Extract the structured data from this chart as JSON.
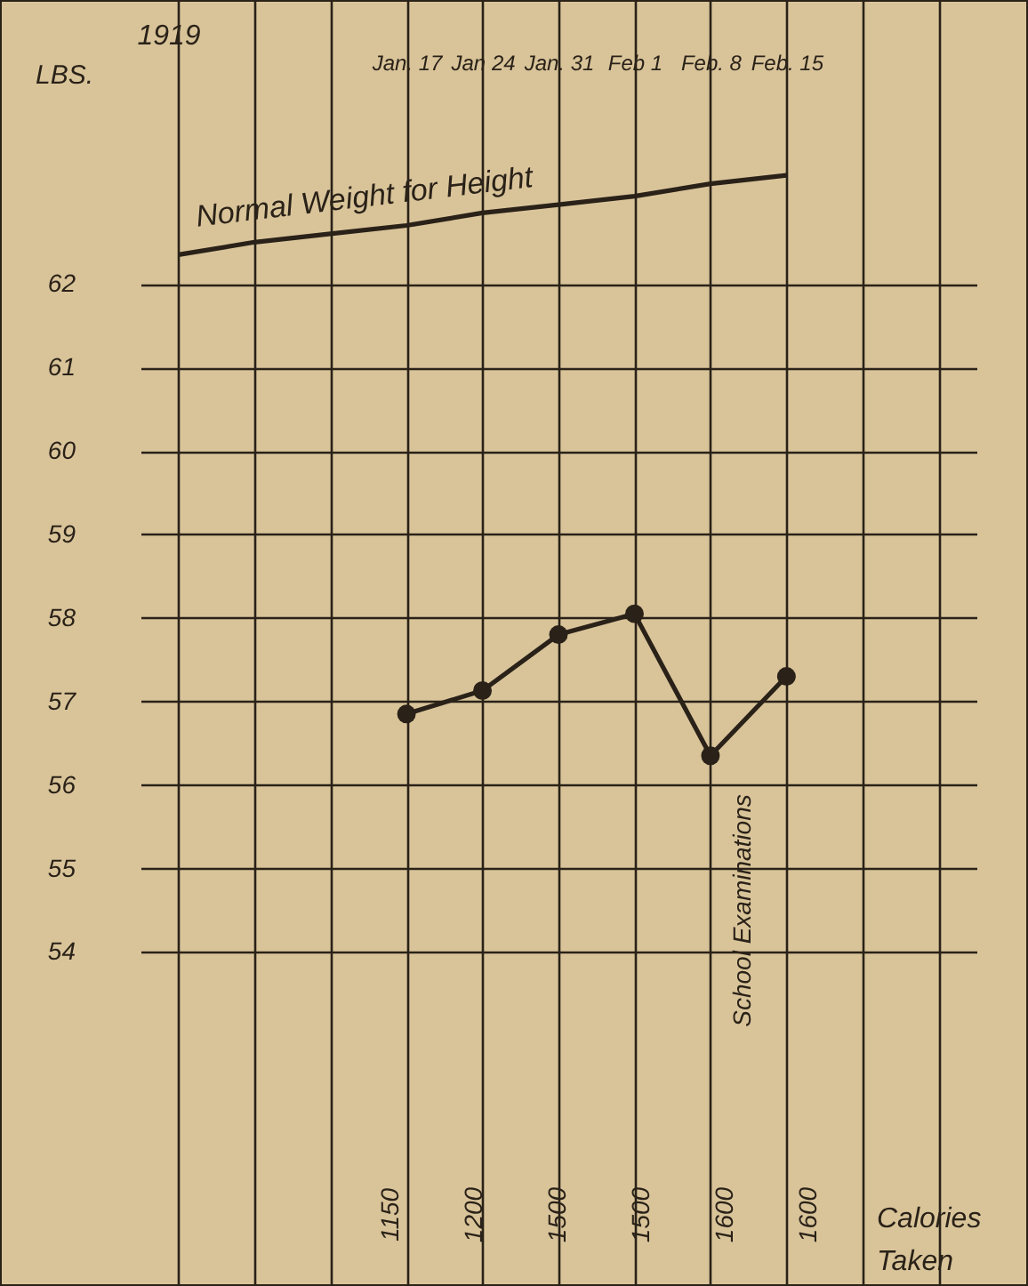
{
  "chart_data": {
    "type": "line",
    "categories": [
      null,
      null,
      null,
      "Jan. 17",
      "Jan 24",
      "Jan. 31",
      "Feb 1",
      "Feb. 8",
      "Feb. 15",
      null,
      null
    ],
    "series": [
      {
        "name": "Normal Weight for Height",
        "color": "#2a2218",
        "marker": "none",
        "values": [
          62.35,
          62.5,
          62.6,
          62.7,
          62.85,
          62.95,
          63.05,
          63.2,
          63.3,
          null,
          null
        ]
      },
      {
        "color": "#2a2218",
        "marker": "circle",
        "values": [
          null,
          null,
          null,
          56.85,
          57.13,
          57.8,
          58.05,
          56.35,
          57.3,
          null,
          null
        ]
      }
    ],
    "ylabel": "LBS.",
    "ylim": [
      50,
      65.4
    ],
    "yticks": [
      54,
      55,
      56,
      57,
      58,
      59,
      60,
      61,
      62
    ],
    "grid": true,
    "line_style": "solid",
    "annotations": [
      "1919",
      "1150",
      "1200",
      "1500",
      "1500",
      "1600",
      "1600",
      "School Examinations",
      "Calories Taken"
    ]
  }
}
